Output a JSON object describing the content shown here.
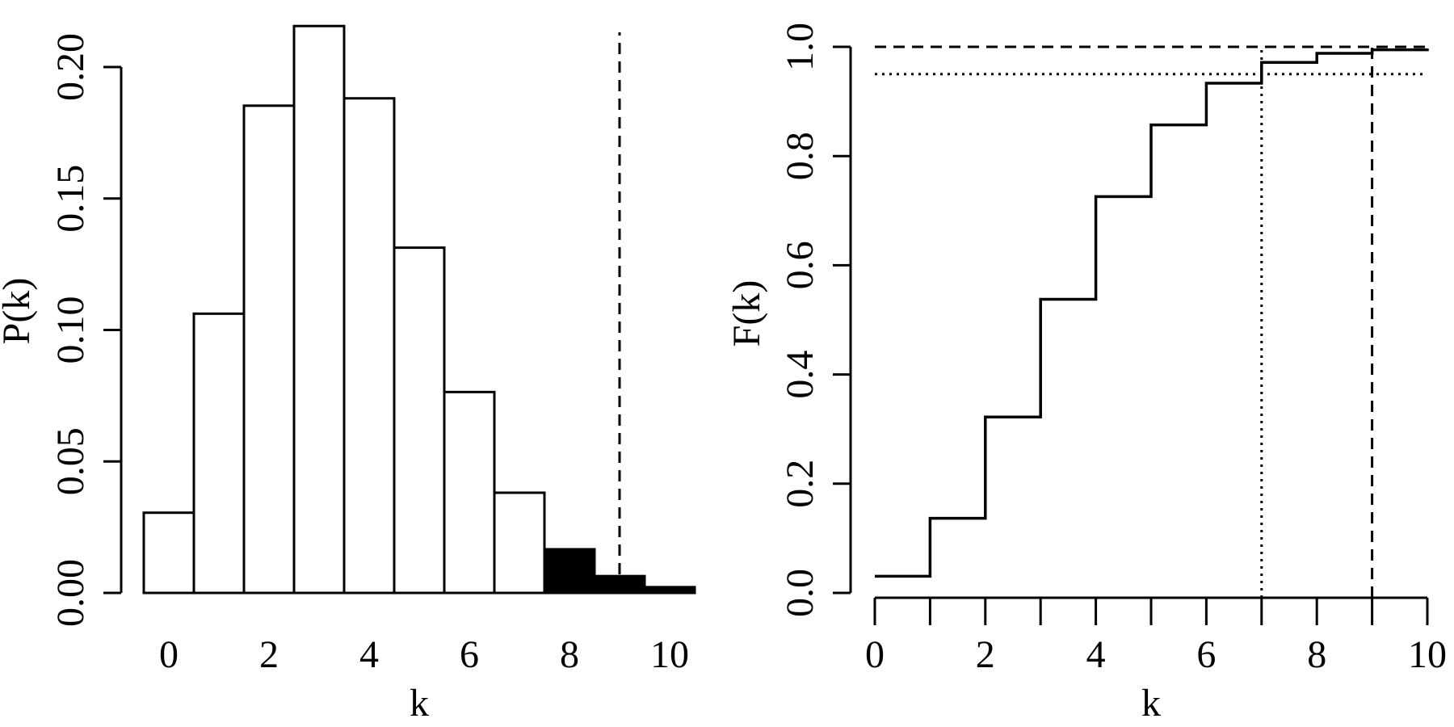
{
  "chart_data": [
    {
      "type": "bar",
      "xlabel": "k",
      "ylabel": "P(k)",
      "xlim": [
        -0.5,
        10.5
      ],
      "ylim": [
        0,
        0.2
      ],
      "x_ticks": [
        0,
        2,
        4,
        6,
        8,
        10
      ],
      "x_tick_labels": [
        "0",
        "2",
        "4",
        "6",
        "8",
        "10"
      ],
      "y_ticks": [
        0,
        0.05,
        0.1,
        0.15,
        0.2
      ],
      "y_tick_labels": [
        "0.00",
        "0.05",
        "0.10",
        "0.15",
        "0.20"
      ],
      "categories": [
        0,
        1,
        2,
        3,
        4,
        5,
        6,
        7,
        8,
        9,
        10
      ],
      "values": [
        0.0305,
        0.1062,
        0.1853,
        0.2156,
        0.1881,
        0.1313,
        0.0764,
        0.0381,
        0.0166,
        0.0064,
        0.0022
      ],
      "highlighted_categories": [
        8,
        9,
        10
      ],
      "bar_fill": "#ffffff",
      "highlight_fill": "#000000",
      "reference_lines": [
        {
          "orientation": "vertical",
          "x": 9,
          "style": "dashed"
        }
      ],
      "grid": false
    },
    {
      "type": "line",
      "subtype": "step",
      "xlabel": "k",
      "ylabel": "F(k)",
      "xlim": [
        0,
        10
      ],
      "ylim": [
        0,
        1
      ],
      "x_ticks": [
        0,
        1,
        2,
        3,
        4,
        5,
        6,
        7,
        8,
        9,
        10
      ],
      "x_tick_labels": [
        "0",
        "",
        "2",
        "",
        "4",
        "",
        "6",
        "",
        "8",
        "",
        "10"
      ],
      "y_ticks": [
        0,
        0.2,
        0.4,
        0.6,
        0.8,
        1.0
      ],
      "y_tick_labels": [
        "0.0",
        "0.2",
        "0.4",
        "0.6",
        "0.8",
        "1.0"
      ],
      "x": [
        0,
        1,
        2,
        3,
        4,
        5,
        6,
        7,
        8,
        9,
        10
      ],
      "values": [
        0.0305,
        0.1367,
        0.3221,
        0.5377,
        0.7258,
        0.8571,
        0.9335,
        0.9716,
        0.9882,
        0.9946,
        0.9968
      ],
      "reference_lines": [
        {
          "orientation": "horizontal",
          "y": 1.0,
          "style": "dashed"
        },
        {
          "orientation": "horizontal",
          "y": 0.95,
          "style": "dotted"
        },
        {
          "orientation": "vertical",
          "x": 7,
          "style": "dotted"
        },
        {
          "orientation": "vertical",
          "x": 9,
          "style": "dashed"
        }
      ],
      "grid": false
    }
  ]
}
